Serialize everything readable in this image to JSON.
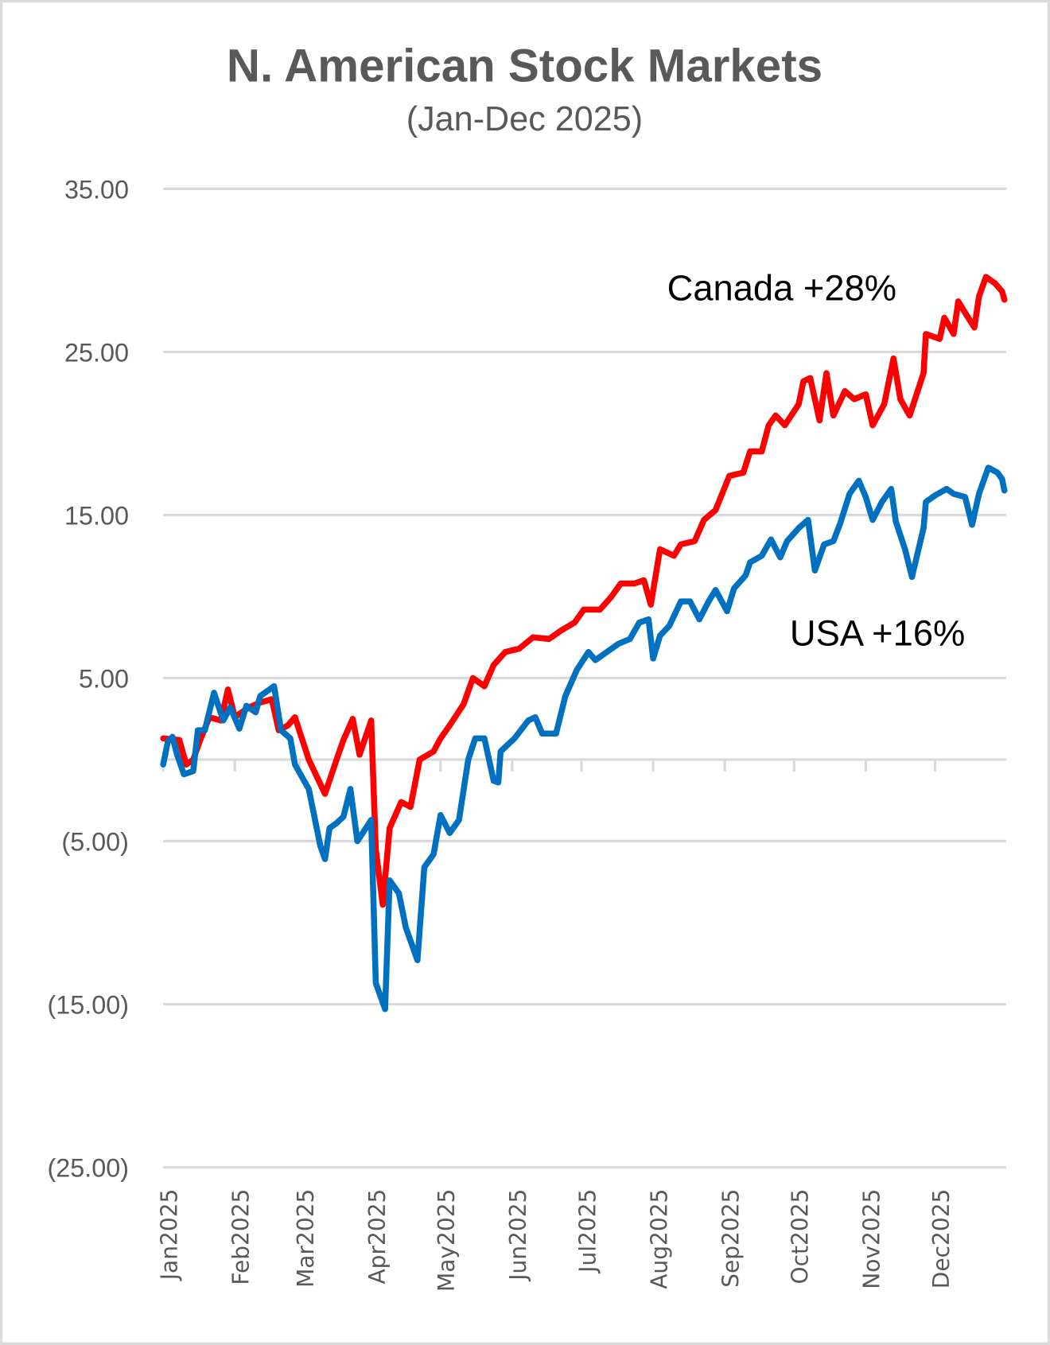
{
  "chart_data": {
    "type": "line",
    "title": "N. American Stock Markets",
    "subtitle": "(Jan-Dec 2025)",
    "xlabel": "",
    "ylabel": "",
    "ylim": [
      -25,
      35
    ],
    "yticks": [
      35,
      25,
      15,
      5,
      -5,
      -15,
      -25
    ],
    "ytick_labels": [
      "35.00",
      "25.00",
      "15.00",
      "5.00",
      "(5.00)",
      "(15.00)",
      "(25.00)"
    ],
    "xlim": [
      "2025-01-01",
      "2025-12-31"
    ],
    "xtick_dates": [
      "2025-01-01",
      "2025-02-01",
      "2025-03-01",
      "2025-04-01",
      "2025-05-01",
      "2025-06-01",
      "2025-07-01",
      "2025-08-01",
      "2025-09-01",
      "2025-10-01",
      "2025-11-01",
      "2025-12-01"
    ],
    "xtick_labels": [
      "Jan2025",
      "Feb2025",
      "Mar2025",
      "Apr2025",
      "May2025",
      "Jun2025",
      "Jul2025",
      "Aug2025",
      "Sep2025",
      "Oct2025",
      "Nov2025",
      "Dec2025"
    ],
    "grid": true,
    "legend": "none",
    "annotations": [
      {
        "text": "Canada +28%",
        "series": "Canada"
      },
      {
        "text": "USA +16%",
        "series": "USA"
      }
    ],
    "series": [
      {
        "name": "Canada",
        "color": "#ff0000",
        "x": [
          "2025-01-01",
          "2025-01-08",
          "2025-01-11",
          "2025-01-14",
          "2025-01-17",
          "2025-01-21",
          "2025-01-26",
          "2025-01-29",
          "2025-02-01",
          "2025-02-07",
          "2025-02-12",
          "2025-02-17",
          "2025-02-20",
          "2025-02-24",
          "2025-02-27",
          "2025-03-05",
          "2025-03-12",
          "2025-03-18",
          "2025-03-20",
          "2025-03-24",
          "2025-03-27",
          "2025-04-01",
          "2025-04-03",
          "2025-04-06",
          "2025-04-09",
          "2025-04-14",
          "2025-04-18",
          "2025-04-22",
          "2025-04-28",
          "2025-05-01",
          "2025-05-05",
          "2025-05-11",
          "2025-05-15",
          "2025-05-20",
          "2025-05-24",
          "2025-05-29",
          "2025-06-04",
          "2025-06-10",
          "2025-06-17",
          "2025-06-22",
          "2025-06-28",
          "2025-07-02",
          "2025-07-09",
          "2025-07-14",
          "2025-07-18",
          "2025-07-24",
          "2025-07-28",
          "2025-07-31",
          "2025-08-04",
          "2025-08-10",
          "2025-08-13",
          "2025-08-19",
          "2025-08-23",
          "2025-08-28",
          "2025-09-03",
          "2025-09-09",
          "2025-09-12",
          "2025-09-17",
          "2025-09-20",
          "2025-09-23",
          "2025-09-27",
          "2025-10-03",
          "2025-10-05",
          "2025-10-08",
          "2025-10-12",
          "2025-10-15",
          "2025-10-18",
          "2025-10-23",
          "2025-10-27",
          "2025-11-01",
          "2025-11-04",
          "2025-11-09",
          "2025-11-13",
          "2025-11-16",
          "2025-11-20",
          "2025-11-26",
          "2025-11-27",
          "2025-12-03",
          "2025-12-05",
          "2025-12-09",
          "2025-12-11",
          "2025-12-14",
          "2025-12-18",
          "2025-12-20",
          "2025-12-23",
          "2025-12-27",
          "2025-12-30",
          "2025-12-31"
        ],
        "y": [
          1.3,
          1.2,
          -0.3,
          0.0,
          1.2,
          2.6,
          2.4,
          4.3,
          2.6,
          3.2,
          3.5,
          3.7,
          1.8,
          2.1,
          2.6,
          0.0,
          -2.1,
          0.4,
          1.2,
          2.5,
          0.3,
          2.4,
          -5.5,
          -8.9,
          -4.2,
          -2.6,
          -2.9,
          0.0,
          0.5,
          1.3,
          2.1,
          3.4,
          5.0,
          4.5,
          5.8,
          6.6,
          6.8,
          7.5,
          7.4,
          7.9,
          8.4,
          9.2,
          9.2,
          10.0,
          10.8,
          10.8,
          11.0,
          9.5,
          12.9,
          12.5,
          13.2,
          13.4,
          14.7,
          15.3,
          17.4,
          17.6,
          18.9,
          18.9,
          20.5,
          21.1,
          20.5,
          21.8,
          23.2,
          23.4,
          20.8,
          23.7,
          21.1,
          22.6,
          22.1,
          22.4,
          20.5,
          21.8,
          24.6,
          22.1,
          21.1,
          23.7,
          26.1,
          25.8,
          27.1,
          26.1,
          28.1,
          27.4,
          26.5,
          28.4,
          29.6,
          29.2,
          28.7,
          28.2
        ]
      },
      {
        "name": "USA",
        "color": "#0070c0",
        "x": [
          "2025-01-01",
          "2025-01-03",
          "2025-01-05",
          "2025-01-07",
          "2025-01-10",
          "2025-01-14",
          "2025-01-16",
          "2025-01-19",
          "2025-01-23",
          "2025-01-27",
          "2025-01-30",
          "2025-02-03",
          "2025-02-06",
          "2025-02-10",
          "2025-02-12",
          "2025-02-18",
          "2025-02-21",
          "2025-02-25",
          "2025-02-27",
          "2025-03-03",
          "2025-03-05",
          "2025-03-10",
          "2025-03-12",
          "2025-03-14",
          "2025-03-17",
          "2025-03-20",
          "2025-03-23",
          "2025-03-26",
          "2025-04-01",
          "2025-04-03",
          "2025-04-07",
          "2025-04-09",
          "2025-04-13",
          "2025-04-16",
          "2025-04-21",
          "2025-04-24",
          "2025-04-28",
          "2025-05-01",
          "2025-05-05",
          "2025-05-09",
          "2025-05-13",
          "2025-05-16",
          "2025-05-20",
          "2025-05-24",
          "2025-05-26",
          "2025-05-27",
          "2025-06-02",
          "2025-06-08",
          "2025-06-11",
          "2025-06-14",
          "2025-06-20",
          "2025-06-24",
          "2025-06-29",
          "2025-07-04",
          "2025-07-07",
          "2025-07-12",
          "2025-07-17",
          "2025-07-22",
          "2025-07-26",
          "2025-07-30",
          "2025-08-01",
          "2025-08-04",
          "2025-08-08",
          "2025-08-13",
          "2025-08-17",
          "2025-08-21",
          "2025-08-25",
          "2025-08-28",
          "2025-09-02",
          "2025-09-05",
          "2025-09-10",
          "2025-09-12",
          "2025-09-17",
          "2025-09-21",
          "2025-09-25",
          "2025-09-28",
          "2025-10-03",
          "2025-10-07",
          "2025-10-10",
          "2025-10-14",
          "2025-10-18",
          "2025-10-21",
          "2025-10-25",
          "2025-10-29",
          "2025-11-01",
          "2025-11-04",
          "2025-11-08",
          "2025-11-12",
          "2025-11-14",
          "2025-11-18",
          "2025-11-21",
          "2025-11-26",
          "2025-11-27",
          "2025-12-01",
          "2025-12-06",
          "2025-12-09",
          "2025-12-14",
          "2025-12-17",
          "2025-12-20",
          "2025-12-24",
          "2025-12-28",
          "2025-12-30",
          "2025-12-31"
        ],
        "y": [
          -0.3,
          1.1,
          1.4,
          0.3,
          -0.9,
          -0.7,
          1.8,
          1.8,
          4.1,
          2.4,
          3.2,
          1.9,
          3.3,
          2.9,
          3.9,
          4.5,
          1.8,
          1.3,
          -0.3,
          -1.3,
          -1.8,
          -5.3,
          -6.1,
          -4.2,
          -3.9,
          -3.5,
          -1.8,
          -5.0,
          -3.7,
          -13.7,
          -15.3,
          -7.4,
          -8.2,
          -10.3,
          -12.3,
          -6.6,
          -5.8,
          -3.4,
          -4.5,
          -3.7,
          0.0,
          1.3,
          1.3,
          -1.3,
          -1.4,
          0.5,
          1.3,
          2.4,
          2.6,
          1.6,
          1.6,
          3.9,
          5.5,
          6.6,
          6.1,
          6.6,
          7.1,
          7.4,
          8.4,
          8.6,
          6.2,
          7.6,
          8.2,
          9.7,
          9.7,
          8.6,
          9.7,
          10.4,
          9.1,
          10.5,
          11.3,
          12.1,
          12.5,
          13.5,
          12.4,
          13.4,
          14.2,
          14.7,
          11.6,
          13.2,
          13.4,
          14.5,
          16.3,
          17.1,
          16.1,
          14.7,
          15.8,
          16.6,
          14.6,
          12.9,
          11.2,
          14.2,
          15.8,
          16.2,
          16.6,
          16.3,
          16.1,
          14.4,
          16.3,
          17.9,
          17.6,
          17.2,
          16.5
        ]
      }
    ]
  }
}
